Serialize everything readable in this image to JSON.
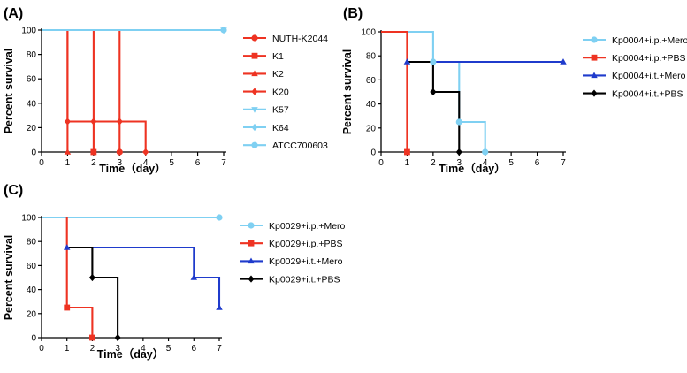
{
  "chart_data": [
    {
      "panel": "(A)",
      "type": "line",
      "xlabel": "Time（day）",
      "ylabel": "Percent survival",
      "xlim": [
        0,
        7
      ],
      "ylim": [
        0,
        100
      ],
      "xticks": [
        "0",
        "1",
        "2",
        "3",
        "4",
        "5",
        "6",
        "7"
      ],
      "yticks": [
        "0",
        "20",
        "40",
        "60",
        "80",
        "100"
      ],
      "legend_position": "right",
      "series": [
        {
          "name": "NUTH-K2044",
          "color": "#ee3322",
          "marker": "circle",
          "steps": [
            [
              0,
              100
            ],
            [
              3,
              100
            ],
            [
              3,
              0
            ]
          ],
          "markers": [
            [
              3,
              0
            ]
          ]
        },
        {
          "name": "K1",
          "color": "#ee3322",
          "marker": "square",
          "steps": [
            [
              0,
              100
            ],
            [
              2,
              100
            ],
            [
              2,
              0
            ]
          ],
          "markers": [
            [
              2,
              0
            ]
          ]
        },
        {
          "name": "K2",
          "color": "#ee3322",
          "marker": "triangle-up",
          "steps": [
            [
              0,
              100
            ],
            [
              1,
              100
            ],
            [
              1,
              0
            ]
          ],
          "markers": [
            [
              1,
              0
            ]
          ]
        },
        {
          "name": "K20",
          "color": "#ee3322",
          "marker": "diamond",
          "steps": [
            [
              0,
              100
            ],
            [
              1,
              100
            ],
            [
              1,
              25
            ],
            [
              4,
              25
            ],
            [
              4,
              0
            ]
          ],
          "markers": [
            [
              1,
              25
            ],
            [
              2,
              25
            ],
            [
              3,
              25
            ],
            [
              4,
              0
            ]
          ]
        },
        {
          "name": "K57",
          "color": "#7fd0f2",
          "marker": "triangle-down",
          "steps": [
            [
              0,
              100
            ],
            [
              7,
              100
            ]
          ],
          "markers": [
            [
              7,
              100
            ]
          ]
        },
        {
          "name": "K64",
          "color": "#7fd0f2",
          "marker": "diamond",
          "steps": [
            [
              0,
              100
            ],
            [
              7,
              100
            ]
          ],
          "markers": [
            [
              7,
              100
            ]
          ]
        },
        {
          "name": "ATCC700603",
          "color": "#7fd0f2",
          "marker": "circle",
          "steps": [
            [
              0,
              100
            ],
            [
              7,
              100
            ]
          ],
          "markers": [
            [
              7,
              100
            ]
          ]
        }
      ]
    },
    {
      "panel": "(B)",
      "type": "line",
      "xlabel": "Time（day）",
      "ylabel": "Percent survival",
      "xlim": [
        0,
        7
      ],
      "ylim": [
        0,
        100
      ],
      "xticks": [
        "0",
        "1",
        "2",
        "3",
        "4",
        "5",
        "6",
        "7"
      ],
      "yticks": [
        "0",
        "20",
        "40",
        "60",
        "80",
        "100"
      ],
      "legend_position": "right",
      "series": [
        {
          "name": "Kp0004+i.p.+Mero",
          "color": "#7fd0f2",
          "marker": "circle",
          "steps": [
            [
              0,
              100
            ],
            [
              2,
              100
            ],
            [
              2,
              75
            ],
            [
              3,
              75
            ],
            [
              3,
              25
            ],
            [
              4,
              25
            ],
            [
              4,
              0
            ]
          ],
          "markers": [
            [
              2,
              75
            ],
            [
              3,
              25
            ],
            [
              4,
              0
            ]
          ]
        },
        {
          "name": "Kp0004+i.p.+PBS",
          "color": "#ee3322",
          "marker": "square",
          "steps": [
            [
              0,
              100
            ],
            [
              1,
              100
            ],
            [
              1,
              0
            ]
          ],
          "markers": [
            [
              1,
              0
            ]
          ]
        },
        {
          "name": "Kp0004+i.t.+Mero",
          "color": "#1f3bcc",
          "marker": "triangle-up",
          "steps": [
            [
              1,
              75
            ],
            [
              7,
              75
            ]
          ],
          "markers": [
            [
              1,
              75
            ],
            [
              7,
              75
            ]
          ]
        },
        {
          "name": "Kp0004+i.t.+PBS",
          "color": "#000000",
          "marker": "diamond",
          "steps": [
            [
              1,
              75
            ],
            [
              2,
              75
            ],
            [
              2,
              50
            ],
            [
              3,
              50
            ],
            [
              3,
              0
            ]
          ],
          "markers": [
            [
              2,
              50
            ],
            [
              3,
              0
            ]
          ]
        }
      ]
    },
    {
      "panel": "(C)",
      "type": "line",
      "xlabel": "Time（day）",
      "ylabel": "Percent survival",
      "xlim": [
        0,
        7
      ],
      "ylim": [
        0,
        100
      ],
      "xticks": [
        "0",
        "1",
        "2",
        "3",
        "4",
        "5",
        "6",
        "7"
      ],
      "yticks": [
        "0",
        "20",
        "40",
        "60",
        "80",
        "100"
      ],
      "legend_position": "right",
      "series": [
        {
          "name": "Kp0029+i.p.+Mero",
          "color": "#7fd0f2",
          "marker": "circle",
          "steps": [
            [
              0,
              100
            ],
            [
              7,
              100
            ]
          ],
          "markers": [
            [
              7,
              100
            ]
          ]
        },
        {
          "name": "Kp0029+i.p.+PBS",
          "color": "#ee3322",
          "marker": "square",
          "steps": [
            [
              1,
              100
            ],
            [
              1,
              25
            ],
            [
              2,
              25
            ],
            [
              2,
              0
            ]
          ],
          "markers": [
            [
              1,
              25
            ],
            [
              2,
              0
            ]
          ]
        },
        {
          "name": "Kp0029+i.t.+Mero",
          "color": "#1f3bcc",
          "marker": "triangle-up",
          "steps": [
            [
              1,
              75
            ],
            [
              6,
              75
            ],
            [
              6,
              50
            ],
            [
              7,
              50
            ],
            [
              7,
              25
            ]
          ],
          "markers": [
            [
              1,
              75
            ],
            [
              6,
              50
            ],
            [
              7,
              25
            ]
          ]
        },
        {
          "name": "Kp0029+i.t.+PBS",
          "color": "#000000",
          "marker": "diamond",
          "steps": [
            [
              1,
              75
            ],
            [
              2,
              75
            ],
            [
              2,
              50
            ],
            [
              3,
              50
            ],
            [
              3,
              0
            ]
          ],
          "markers": [
            [
              2,
              50
            ],
            [
              3,
              0
            ]
          ]
        }
      ]
    }
  ]
}
